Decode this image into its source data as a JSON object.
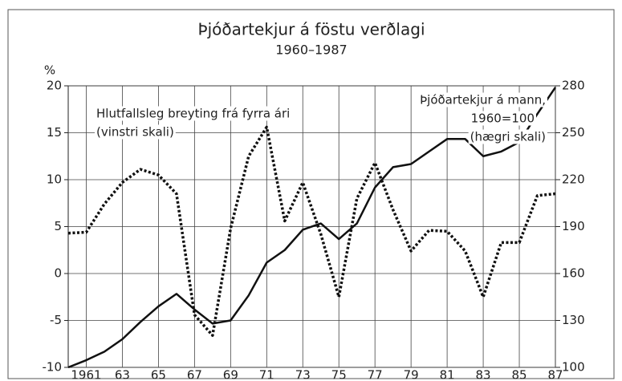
{
  "chart_data": {
    "type": "line",
    "title": "Þjóðartekjur á föstu verðlagi",
    "subtitle": "1960–1987",
    "y_label": "%",
    "annotations": [
      "Hlutfallsleg breyting frá fyrra ári",
      "(vinstri skali)",
      "Þjóðartekjur á mann,",
      "1960=100",
      "(hægri skali)"
    ],
    "x": [
      1960,
      1961,
      1962,
      1963,
      1964,
      1965,
      1966,
      1967,
      1968,
      1969,
      1970,
      1971,
      1972,
      1973,
      1974,
      1975,
      1976,
      1977,
      1978,
      1979,
      1980,
      1981,
      1982,
      1983,
      1984,
      1985,
      1986,
      1987
    ],
    "xlim": [
      1960,
      1987
    ],
    "xticks": [
      1961,
      {
        "value": 1963,
        "label": "63"
      },
      {
        "value": 1965,
        "label": "65"
      },
      {
        "value": 1967,
        "label": "67"
      },
      {
        "value": 1969,
        "label": "69"
      },
      {
        "value": 1971,
        "label": "71"
      },
      {
        "value": 1973,
        "label": "73"
      },
      {
        "value": 1975,
        "label": "75"
      },
      {
        "value": 1977,
        "label": "77"
      },
      {
        "value": 1979,
        "label": "79"
      },
      {
        "value": 1981,
        "label": "81"
      },
      {
        "value": 1983,
        "label": "83"
      },
      {
        "value": 1985,
        "label": "85"
      },
      {
        "value": 1987,
        "label": "87"
      }
    ],
    "ylim": [
      -10,
      20
    ],
    "yticks": [
      -10,
      -5,
      0,
      5,
      10,
      15,
      20
    ],
    "y2lim": [
      100,
      280
    ],
    "y2ticks": [
      100,
      130,
      160,
      190,
      220,
      250,
      280
    ],
    "grid": true,
    "series": [
      {
        "color": "#111111",
        "dashed": true,
        "values": [
          4.3,
          4.4,
          7.4,
          9.7,
          11.1,
          10.5,
          8.5,
          -4.4,
          -6.6,
          4.8,
          12.5,
          15.6,
          5.6,
          9.7,
          4.2,
          -2.5,
          8.0,
          11.8,
          6.8,
          2.4,
          4.6,
          4.5,
          2.4,
          -2.5,
          3.3,
          3.3,
          8.3,
          8.5
        ]
      },
      {
        "color": "#111111",
        "dashed": false,
        "axis": "y2",
        "values": [
          100,
          104.6,
          110,
          118,
          129,
          139,
          147,
          137,
          128,
          130,
          146,
          167,
          175,
          188,
          192,
          182,
          192,
          215,
          228,
          230,
          238,
          246,
          246,
          235,
          238,
          244,
          262,
          279
        ]
      }
    ]
  }
}
